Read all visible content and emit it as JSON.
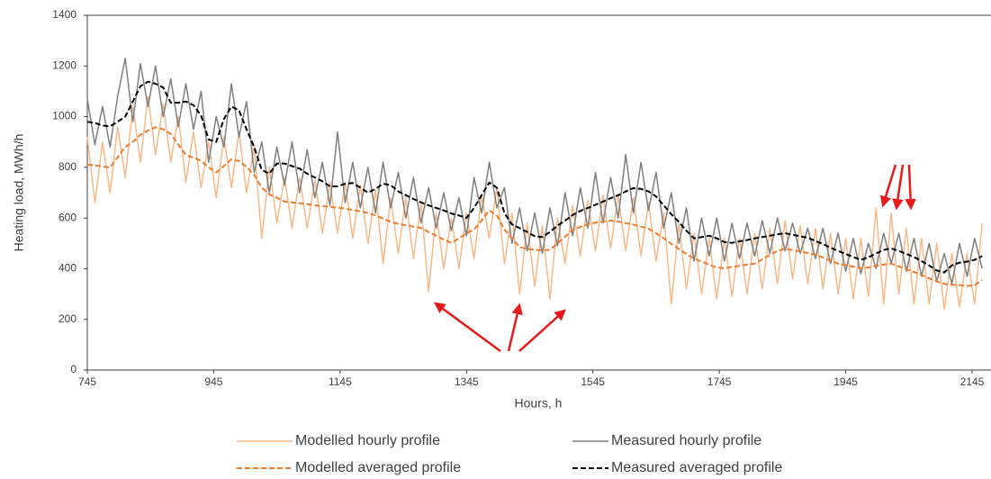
{
  "chart_data": {
    "type": "line",
    "x_label": "Hours, h",
    "y_label": "Heating load, MWh/h",
    "xlim": [
      745,
      2175
    ],
    "ylim": [
      0,
      1400
    ],
    "xticks": [
      745,
      945,
      1145,
      1345,
      1545,
      1745,
      1945,
      2145
    ],
    "yticks": [
      0,
      200,
      400,
      600,
      800,
      1000,
      1200,
      1400
    ],
    "grid": false,
    "x": [
      745,
      757,
      769,
      781,
      793,
      805,
      817,
      829,
      841,
      853,
      865,
      877,
      889,
      901,
      913,
      925,
      937,
      949,
      961,
      973,
      985,
      997,
      1009,
      1021,
      1033,
      1045,
      1057,
      1069,
      1081,
      1093,
      1105,
      1117,
      1129,
      1141,
      1153,
      1165,
      1177,
      1189,
      1201,
      1213,
      1225,
      1237,
      1249,
      1261,
      1273,
      1285,
      1297,
      1309,
      1321,
      1333,
      1345,
      1357,
      1369,
      1381,
      1393,
      1405,
      1417,
      1429,
      1441,
      1453,
      1465,
      1477,
      1489,
      1501,
      1513,
      1525,
      1537,
      1549,
      1561,
      1573,
      1585,
      1597,
      1609,
      1621,
      1633,
      1645,
      1657,
      1669,
      1681,
      1693,
      1705,
      1717,
      1729,
      1741,
      1753,
      1765,
      1777,
      1789,
      1801,
      1813,
      1825,
      1837,
      1849,
      1861,
      1873,
      1885,
      1897,
      1909,
      1921,
      1933,
      1945,
      1957,
      1969,
      1981,
      1993,
      2005,
      2017,
      2029,
      2041,
      2053,
      2065,
      2077,
      2089,
      2101,
      2113,
      2125,
      2137,
      2149,
      2161
    ],
    "series": [
      {
        "name": "Modelled hourly profile",
        "color": "#f7b98a",
        "dashed": false,
        "width": 1.5,
        "values": [
          920,
          660,
          900,
          700,
          960,
          760,
          1040,
          820,
          1080,
          850,
          1050,
          820,
          1000,
          740,
          940,
          720,
          900,
          680,
          920,
          720,
          940,
          700,
          880,
          520,
          800,
          580,
          760,
          560,
          760,
          560,
          750,
          540,
          740,
          540,
          740,
          520,
          730,
          500,
          710,
          420,
          680,
          460,
          680,
          440,
          660,
          310,
          620,
          400,
          600,
          400,
          620,
          440,
          690,
          520,
          720,
          420,
          620,
          300,
          580,
          330,
          570,
          280,
          600,
          420,
          650,
          450,
          670,
          470,
          690,
          480,
          690,
          470,
          680,
          450,
          660,
          430,
          620,
          260,
          580,
          320,
          540,
          300,
          520,
          280,
          520,
          290,
          520,
          300,
          540,
          320,
          560,
          340,
          590,
          360,
          570,
          340,
          560,
          320,
          540,
          300,
          520,
          280,
          520,
          290,
          640,
          260,
          620,
          300,
          560,
          260,
          520,
          260,
          500,
          240,
          460,
          250,
          460,
          260,
          580
        ]
      },
      {
        "name": "Measured hourly profile",
        "color": "#7f7f7f",
        "dashed": false,
        "width": 1.5,
        "values": [
          1070,
          890,
          1040,
          880,
          1080,
          1230,
          980,
          1210,
          1040,
          1200,
          1000,
          1150,
          960,
          1130,
          950,
          1100,
          820,
          1000,
          880,
          1130,
          920,
          1060,
          780,
          900,
          700,
          880,
          730,
          900,
          700,
          870,
          680,
          820,
          650,
          940,
          660,
          820,
          640,
          800,
          620,
          820,
          640,
          780,
          600,
          760,
          580,
          720,
          560,
          700,
          550,
          680,
          530,
          760,
          620,
          820,
          640,
          720,
          500,
          640,
          470,
          620,
          460,
          640,
          490,
          700,
          530,
          720,
          560,
          780,
          580,
          760,
          600,
          850,
          620,
          820,
          630,
          780,
          560,
          700,
          500,
          640,
          430,
          600,
          450,
          600,
          430,
          580,
          440,
          580,
          450,
          590,
          460,
          600,
          470,
          580,
          460,
          560,
          440,
          560,
          420,
          540,
          390,
          520,
          380,
          500,
          400,
          540,
          420,
          540,
          390,
          520,
          370,
          500,
          350,
          460,
          340,
          500,
          370,
          520,
          400
        ]
      },
      {
        "name": "Modelled averaged profile",
        "color": "#ed7d31",
        "dashed": true,
        "width": 2,
        "values": [
          810,
          808,
          803,
          800,
          840,
          880,
          900,
          928,
          945,
          958,
          950,
          932,
          890,
          848,
          838,
          826,
          800,
          780,
          805,
          832,
          825,
          802,
          770,
          720,
          693,
          680,
          665,
          662,
          658,
          654,
          650,
          647,
          644,
          641,
          637,
          632,
          626,
          620,
          610,
          598,
          585,
          577,
          571,
          566,
          561,
          545,
          530,
          515,
          502,
          520,
          540,
          555,
          590,
          630,
          610,
          555,
          520,
          485,
          478,
          475,
          472,
          475,
          500,
          527,
          553,
          565,
          575,
          582,
          586,
          590,
          586,
          580,
          574,
          566,
          558,
          540,
          520,
          498,
          478,
          458,
          440,
          428,
          416,
          404,
          402,
          407,
          411,
          416,
          420,
          437,
          454,
          470,
          479,
          473,
          468,
          462,
          455,
          444,
          432,
          420,
          414,
          408,
          402,
          405,
          411,
          416,
          420,
          409,
          398,
          387,
          375,
          362,
          350,
          340,
          337,
          335,
          332,
          335,
          355
        ]
      },
      {
        "name": "Measured averaged profile",
        "color": "#000000",
        "dashed": true,
        "width": 2,
        "values": [
          980,
          975,
          965,
          962,
          980,
          1000,
          1060,
          1120,
          1138,
          1130,
          1115,
          1055,
          1055,
          1060,
          1045,
          1005,
          910,
          900,
          990,
          1040,
          1025,
          950,
          880,
          790,
          775,
          815,
          815,
          805,
          795,
          775,
          760,
          745,
          725,
          725,
          735,
          738,
          720,
          700,
          715,
          735,
          730,
          705,
          690,
          675,
          662,
          650,
          640,
          630,
          618,
          610,
          600,
          640,
          690,
          740,
          720,
          620,
          575,
          560,
          545,
          528,
          525,
          545,
          570,
          590,
          612,
          628,
          640,
          652,
          665,
          678,
          690,
          705,
          718,
          715,
          705,
          685,
          650,
          615,
          585,
          550,
          520,
          525,
          530,
          520,
          505,
          502,
          508,
          513,
          520,
          525,
          530,
          536,
          540,
          534,
          528,
          522,
          510,
          497,
          483,
          470,
          458,
          446,
          435,
          445,
          460,
          474,
          480,
          470,
          458,
          446,
          430,
          413,
          393,
          385,
          413,
          424,
          428,
          435,
          450
        ]
      }
    ]
  }
}
